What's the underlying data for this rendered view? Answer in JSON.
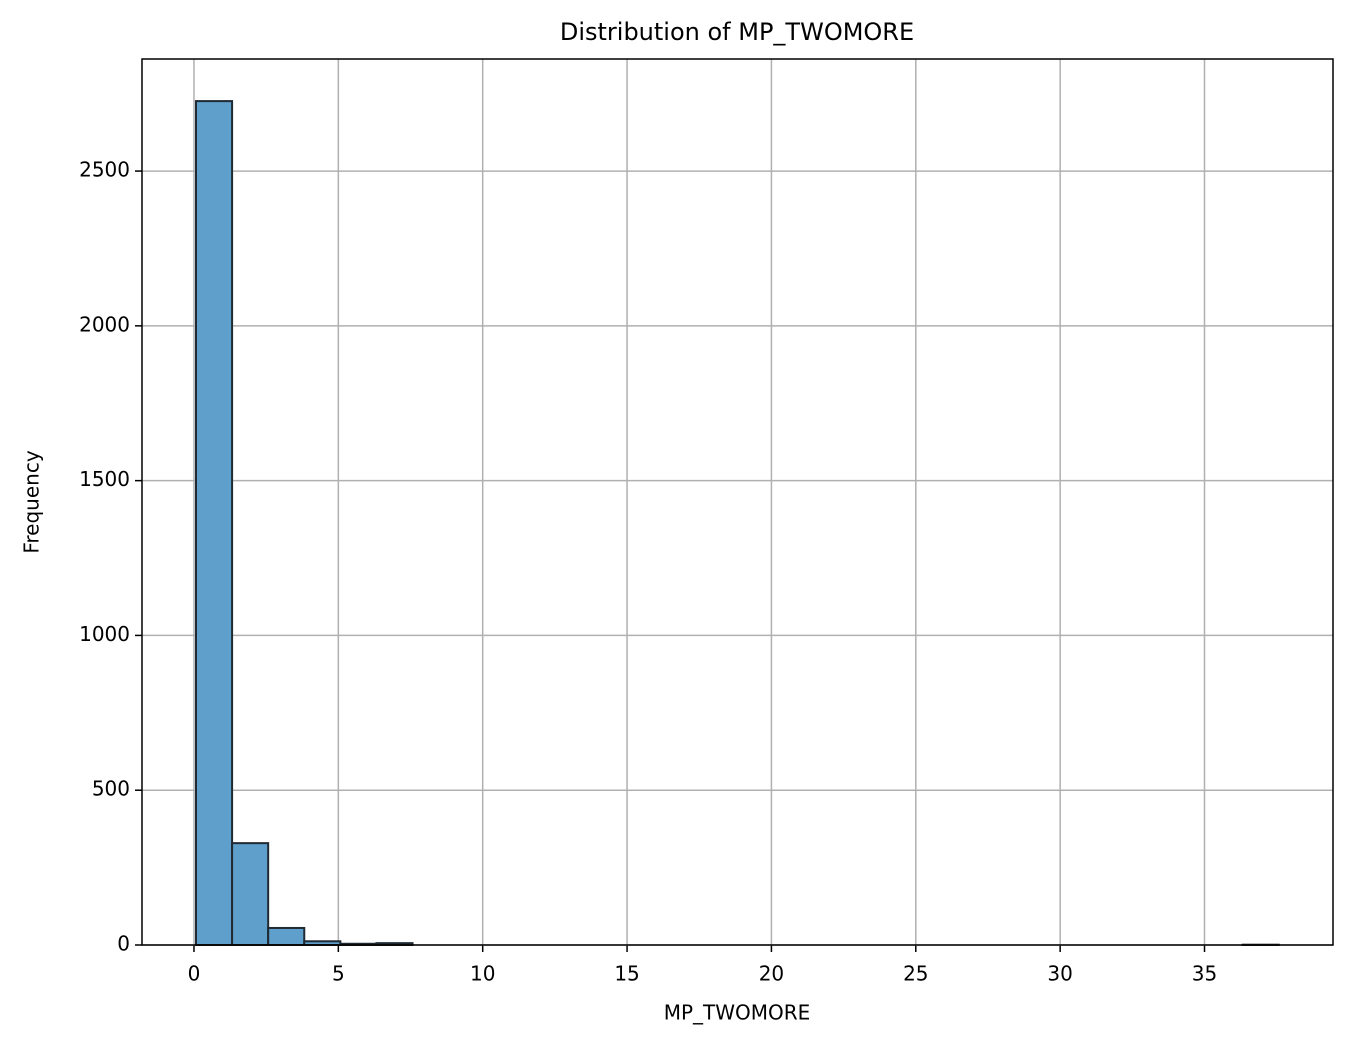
{
  "chart_data": {
    "type": "histogram",
    "title": "Distribution of MP_TWOMORE",
    "xlabel": "MP_TWOMORE",
    "ylabel": "Frequency",
    "bins": [
      0.07,
      1.32,
      2.57,
      3.82,
      5.07,
      6.32,
      7.57,
      8.82,
      10.07,
      11.32,
      12.57,
      13.82,
      15.07,
      16.32,
      17.57,
      18.82,
      20.07,
      21.32,
      22.57,
      23.82,
      25.07,
      26.32,
      27.57,
      28.82,
      30.07,
      31.32,
      32.57,
      33.82,
      35.07,
      36.32,
      37.57
    ],
    "values": [
      2726,
      329,
      55,
      12,
      4,
      6,
      0,
      0,
      0,
      0,
      0,
      0,
      0,
      0,
      0,
      0,
      0,
      0,
      0,
      0,
      0,
      0,
      0,
      0,
      0,
      0,
      0,
      0,
      0,
      1
    ],
    "color": "#5f9fcc",
    "edgecolor": "#1f2a33",
    "xlim": [
      -1.8,
      39.45
    ],
    "xticks": [
      0,
      5,
      10,
      15,
      20,
      25,
      30,
      35
    ],
    "ylim": [
      0,
      2862
    ],
    "yticks": [
      0,
      500,
      1000,
      1500,
      2000,
      2500
    ],
    "grid": true
  }
}
